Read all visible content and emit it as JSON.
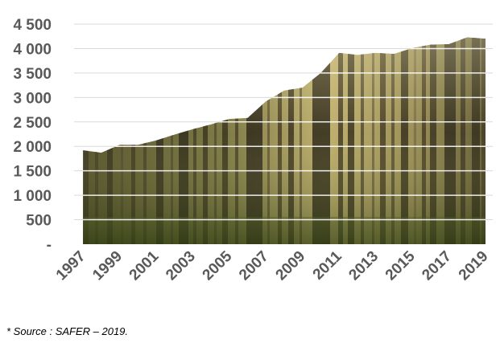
{
  "chart_data": {
    "type": "area",
    "x": [
      "1997",
      "1998",
      "1999",
      "2000",
      "2001",
      "2002",
      "2003",
      "2004",
      "2005",
      "2006",
      "2007",
      "2008",
      "2009",
      "2010",
      "2011",
      "2012",
      "2013",
      "2014",
      "2015",
      "2016",
      "2017",
      "2018",
      "2019"
    ],
    "values": [
      1920,
      1870,
      2030,
      2030,
      2120,
      2240,
      2350,
      2450,
      2560,
      2580,
      2920,
      3140,
      3200,
      3500,
      3910,
      3870,
      3910,
      3890,
      4010,
      4080,
      4090,
      4230,
      4200
    ],
    "xticks": [
      "1997",
      "1999",
      "2001",
      "2003",
      "2005",
      "2007",
      "2009",
      "2011",
      "2013",
      "2015",
      "2017",
      "2019"
    ],
    "yticks": [
      {
        "value": 0,
        "label": "-"
      },
      {
        "value": 500,
        "label": "500"
      },
      {
        "value": 1000,
        "label": "1 000"
      },
      {
        "value": 1500,
        "label": "1 500"
      },
      {
        "value": 2000,
        "label": "2 000"
      },
      {
        "value": 2500,
        "label": "2 500"
      },
      {
        "value": 3000,
        "label": "3 000"
      },
      {
        "value": 3500,
        "label": "3 500"
      },
      {
        "value": 4000,
        "label": "4 000"
      },
      {
        "value": 4500,
        "label": "4 500"
      }
    ],
    "ylim": [
      0,
      4500
    ],
    "grid": true,
    "fill": "forest photo texture"
  },
  "footnote": "* Source : SAFER – 2019."
}
